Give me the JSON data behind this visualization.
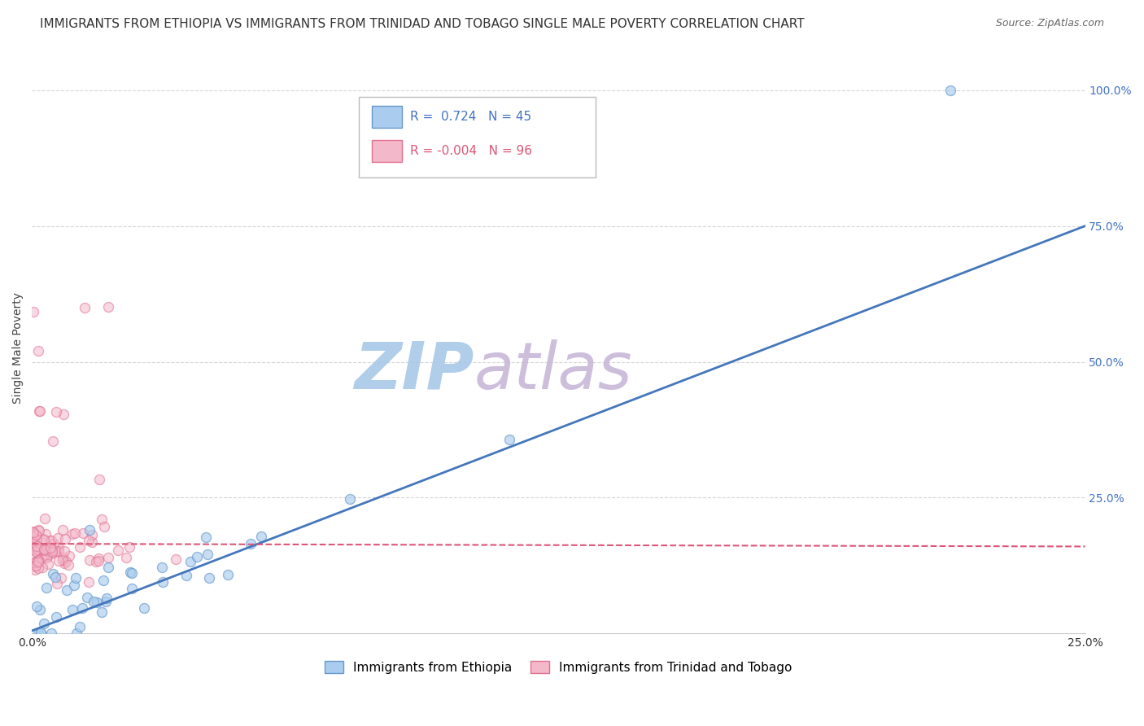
{
  "title": "IMMIGRANTS FROM ETHIOPIA VS IMMIGRANTS FROM TRINIDAD AND TOBAGO SINGLE MALE POVERTY CORRELATION CHART",
  "source": "Source: ZipAtlas.com",
  "ylabel": "Single Male Poverty",
  "xlim": [
    0.0,
    0.25
  ],
  "ylim": [
    0.0,
    1.05
  ],
  "xtick_labels": [
    "0.0%",
    "25.0%"
  ],
  "xtick_vals": [
    0.0,
    0.25
  ],
  "ytick_labels": [
    "100.0%",
    "75.0%",
    "50.0%",
    "25.0%"
  ],
  "ytick_vals": [
    1.0,
    0.75,
    0.5,
    0.25
  ],
  "ethiopia_color": "#aaccee",
  "tt_color": "#f4b8cb",
  "ethiopia_edge": "#6699cc",
  "tt_edge": "#e07090",
  "regression_blue_color": "#4477bb",
  "regression_pink_color": "#dd5577",
  "R_ethiopia": 0.724,
  "N_ethiopia": 45,
  "R_tt": -0.004,
  "N_tt": 96,
  "watermark": "ZIPatlas",
  "watermark_color_zip": "#a8c8e8",
  "watermark_color_atlas": "#c8b8d8",
  "legend_label_ethiopia": "Immigrants from Ethiopia",
  "legend_label_tt": "Immigrants from Trinidad and Tobago",
  "title_fontsize": 11,
  "axis_label_fontsize": 10,
  "tick_fontsize": 10,
  "source_fontsize": 9,
  "legend_fontsize": 11,
  "blue_line_x": [
    0.0,
    0.25
  ],
  "blue_line_y": [
    0.005,
    0.75
  ],
  "pink_line_x": [
    0.0,
    0.25
  ],
  "pink_line_y": [
    0.165,
    0.16
  ],
  "background_color": "#ffffff",
  "grid_color": "#cccccc",
  "ytick_color": "#4472c4"
}
